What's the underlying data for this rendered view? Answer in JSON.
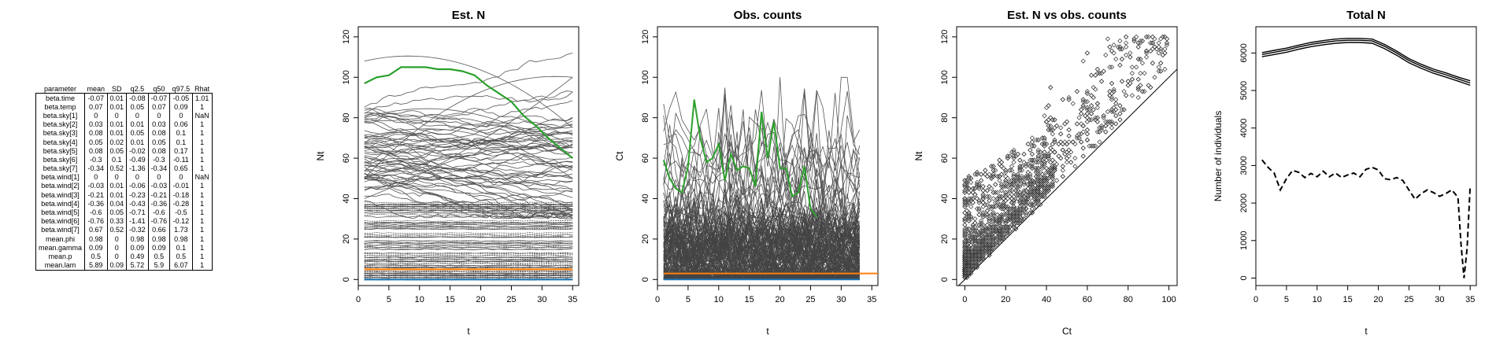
{
  "table": {
    "headers": [
      "parameter",
      "mean",
      "SD",
      "q2.5",
      "q50",
      "q97.5",
      "Rhat"
    ],
    "rows": [
      [
        "beta.time",
        "-0.07",
        "0.01",
        "-0.08",
        "-0.07",
        "-0.05",
        "1.01"
      ],
      [
        "beta.temp",
        "0.07",
        "0.01",
        "0.05",
        "0.07",
        "0.09",
        "1"
      ],
      [
        "beta.sky[1]",
        "0",
        "0",
        "0",
        "0",
        "0",
        "NaN"
      ],
      [
        "beta.sky[2]",
        "0.03",
        "0.01",
        "0.01",
        "0.03",
        "0.06",
        "1"
      ],
      [
        "beta.sky[3]",
        "0.08",
        "0.01",
        "0.05",
        "0.08",
        "0.1",
        "1"
      ],
      [
        "beta.sky[4]",
        "0.05",
        "0.02",
        "0.01",
        "0.05",
        "0.1",
        "1"
      ],
      [
        "beta.sky[5]",
        "0.08",
        "0.05",
        "-0.02",
        "0.08",
        "0.17",
        "1"
      ],
      [
        "beta.sky[6]",
        "-0.3",
        "0.1",
        "-0.49",
        "-0.3",
        "-0.11",
        "1"
      ],
      [
        "beta.sky[7]",
        "-0.34",
        "0.52",
        "-1.36",
        "-0.34",
        "0.65",
        "1"
      ],
      [
        "beta.wind[1]",
        "0",
        "0",
        "0",
        "0",
        "0",
        "NaN"
      ],
      [
        "beta.wind[2]",
        "-0.03",
        "0.01",
        "-0.06",
        "-0.03",
        "-0.01",
        "1"
      ],
      [
        "beta.wind[3]",
        "-0.21",
        "0.01",
        "-0.23",
        "-0.21",
        "-0.18",
        "1"
      ],
      [
        "beta.wind[4]",
        "-0.36",
        "0.04",
        "-0.43",
        "-0.36",
        "-0.28",
        "1"
      ],
      [
        "beta.wind[5]",
        "-0.6",
        "0.05",
        "-0.71",
        "-0.6",
        "-0.5",
        "1"
      ],
      [
        "beta.wind[6]",
        "-0.76",
        "0.33",
        "-1.41",
        "-0.76",
        "-0.12",
        "1"
      ],
      [
        "beta.wind[7]",
        "0.67",
        "0.52",
        "-0.32",
        "0.66",
        "1.73",
        "1"
      ],
      [
        "mean.phi",
        "0.98",
        "0",
        "0.98",
        "0.98",
        "0.98",
        "1"
      ],
      [
        "mean.gamma",
        "0.09",
        "0",
        "0.09",
        "0.09",
        "0.1",
        "1"
      ],
      [
        "mean.p",
        "0.5",
        "0",
        "0.49",
        "0.5",
        "0.5",
        "1"
      ],
      [
        "mean.lam",
        "5.89",
        "0.09",
        "5.72",
        "5.9",
        "6.07",
        "1"
      ]
    ]
  },
  "chart_data": [
    {
      "type": "line",
      "title": "Est. N",
      "xlabel": "t",
      "ylabel": "Nt",
      "xlim": [
        0,
        36
      ],
      "ylim": [
        -3,
        125
      ],
      "xticks": [
        0,
        5,
        10,
        15,
        20,
        25,
        30,
        35
      ],
      "yticks": [
        0,
        20,
        40,
        60,
        80,
        100,
        120
      ],
      "background_series": "many grey site trajectories (approx. 0-120)",
      "series": [
        {
          "color": "#2ca02c",
          "x": [
            1,
            3,
            5,
            7,
            9,
            11,
            13,
            15,
            17,
            19,
            21,
            23,
            25,
            27,
            29,
            31,
            33,
            35
          ],
          "values": [
            97,
            100,
            101,
            105,
            105,
            105,
            104,
            104,
            103,
            101,
            96,
            92,
            88,
            81,
            76,
            70,
            65,
            60
          ]
        },
        {
          "color": "#ff7f0e",
          "x": [
            1,
            35
          ],
          "values": [
            5,
            5
          ]
        },
        {
          "color": "#1f77b4",
          "x": [
            1,
            35
          ],
          "values": [
            0,
            0
          ]
        }
      ]
    },
    {
      "type": "line",
      "title": "Obs. counts",
      "xlabel": "t",
      "ylabel": "Ct",
      "xlim": [
        0,
        36
      ],
      "ylim": [
        -3,
        125
      ],
      "xticks": [
        0,
        5,
        10,
        15,
        20,
        25,
        30,
        35
      ],
      "yticks": [
        0,
        20,
        40,
        60,
        80,
        100,
        120
      ],
      "background_series": "many grey site count series (approx. 0-100)",
      "series": [
        {
          "color": "#2ca02c",
          "x": [
            1,
            2,
            3,
            4,
            5,
            6,
            7,
            8,
            9,
            10,
            11,
            12,
            13,
            14,
            15,
            16,
            17,
            18,
            19,
            20,
            21,
            22,
            23,
            24,
            25,
            26
          ],
          "values": [
            59,
            50,
            45,
            43,
            56,
            89,
            70,
            58,
            60,
            67,
            49,
            62,
            54,
            56,
            55,
            46,
            83,
            60,
            78,
            55,
            55,
            41,
            43,
            56,
            35,
            31
          ]
        },
        {
          "color": "#ff7f0e",
          "x": [
            1,
            36
          ],
          "values": [
            3,
            3
          ]
        },
        {
          "color": "#1f77b4",
          "x": [
            1,
            33
          ],
          "values": [
            0,
            0
          ]
        }
      ]
    },
    {
      "type": "scatter",
      "title": "Est. N vs obs. counts",
      "xlabel": "Ct",
      "ylabel": "Nt",
      "xlim": [
        -4,
        104
      ],
      "ylim": [
        -3,
        125
      ],
      "xticks": [
        0,
        20,
        40,
        60,
        80,
        100
      ],
      "yticks": [
        0,
        20,
        40,
        60,
        80,
        100,
        120
      ],
      "marker": "open diamond",
      "reference_line": "1:1 line (Nt = Ct)",
      "points": "dense cloud above 1:1 line; Nt ranges from Ct to about 120 for Ct 0-100"
    },
    {
      "type": "line",
      "title": "Total N",
      "xlabel": "t",
      "ylabel": "Number of individuals",
      "xlim": [
        0,
        36
      ],
      "ylim": [
        -200,
        6700
      ],
      "xticks": [
        0,
        5,
        10,
        15,
        20,
        25,
        30,
        35
      ],
      "yticks": [
        0,
        1000,
        2000,
        3000,
        4000,
        5000,
        6000
      ],
      "series": [
        {
          "style": "solid",
          "x": [
            1,
            3,
            5,
            7,
            9,
            11,
            13,
            15,
            17,
            19,
            21,
            23,
            25,
            27,
            29,
            31,
            33,
            35
          ],
          "values": [
            5960,
            6020,
            6080,
            6160,
            6230,
            6280,
            6320,
            6340,
            6340,
            6320,
            6180,
            6000,
            5800,
            5650,
            5520,
            5420,
            5310,
            5200
          ]
        },
        {
          "style": "solid",
          "x": [
            1,
            3,
            5,
            7,
            9,
            11,
            13,
            15,
            17,
            19,
            21,
            23,
            25,
            27,
            29,
            31,
            33,
            35
          ],
          "values": [
            6010,
            6070,
            6130,
            6210,
            6280,
            6330,
            6370,
            6390,
            6390,
            6370,
            6230,
            6050,
            5850,
            5700,
            5570,
            5470,
            5360,
            5260
          ]
        },
        {
          "style": "solid",
          "x": [
            1,
            3,
            5,
            7,
            9,
            11,
            13,
            15,
            17,
            19,
            21,
            23,
            25,
            27,
            29,
            31,
            33,
            35
          ],
          "values": [
            5900,
            5960,
            6020,
            6100,
            6170,
            6220,
            6260,
            6280,
            6280,
            6260,
            6120,
            5940,
            5740,
            5590,
            5460,
            5360,
            5250,
            5140
          ]
        },
        {
          "style": "dashed",
          "x": [
            1,
            2,
            3,
            4,
            5,
            6,
            7,
            8,
            9,
            10,
            11,
            12,
            13,
            14,
            15,
            16,
            17,
            18,
            19,
            20,
            21,
            22,
            23,
            24,
            25,
            26,
            27,
            28,
            29,
            30,
            31,
            32,
            33,
            33.5,
            34,
            34.5,
            35
          ],
          "values": [
            3150,
            2950,
            2800,
            2350,
            2650,
            2870,
            2820,
            2680,
            2790,
            2700,
            2850,
            2700,
            2800,
            2680,
            2750,
            2800,
            2700,
            2900,
            2950,
            2880,
            2650,
            2620,
            2680,
            2600,
            2350,
            2100,
            2250,
            2350,
            2280,
            2180,
            2250,
            2350,
            2150,
            900,
            0,
            800,
            2450
          ]
        }
      ]
    }
  ]
}
